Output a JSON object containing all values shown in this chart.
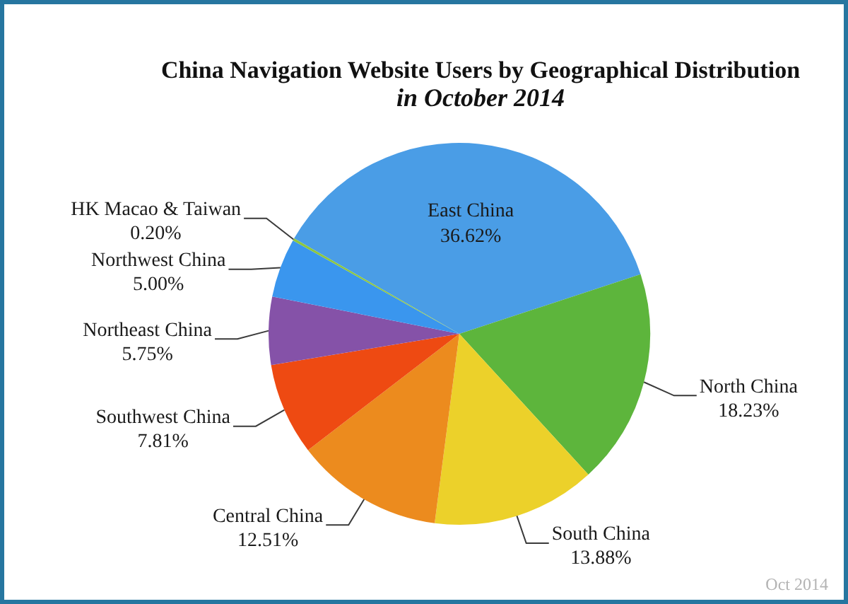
{
  "chart_data": {
    "type": "pie",
    "title": "China Navigation Website Users by Geographical Distribution",
    "subtitle": "in October 2014",
    "categories": [
      "East China",
      "North China",
      "South China",
      "Central China",
      "Southwest China",
      "Northeast China",
      "Northwest China",
      "HK Macao & Taiwan"
    ],
    "values": [
      36.62,
      18.23,
      13.88,
      12.51,
      7.81,
      5.75,
      5.0,
      0.2
    ],
    "colors": [
      "#4a9de6",
      "#5db53c",
      "#ecd12a",
      "#ec8b1e",
      "#ee4a12",
      "#8552a8",
      "#3a96ee",
      "#8cc63f"
    ],
    "value_labels": [
      "36.62%",
      "18.23%",
      "13.88%",
      "12.51%",
      "7.81%",
      "5.75%",
      "5.00%",
      "0.20%"
    ],
    "annotations": [
      "Oct 2014"
    ]
  }
}
